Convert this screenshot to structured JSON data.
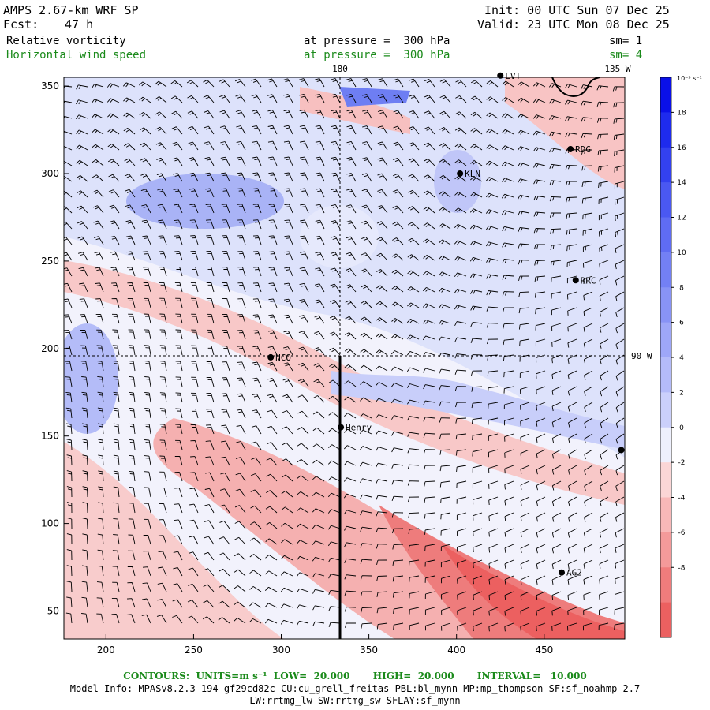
{
  "header": {
    "model": "AMPS 2.67-km WRF SP",
    "fcst_label": "Fcst:",
    "fcst_value": "47 h",
    "init": "Init: 00 UTC Sun 07 Dec 25",
    "valid": "Valid: 23 UTC Mon 08 Dec 25",
    "field1": "Relative vorticity",
    "field1_level": "at pressure =  300 hPa",
    "field1_sm": "sm= 1",
    "field2": "Horizontal wind speed",
    "field2_level": "at pressure =  300 hPa",
    "field2_sm": "sm= 4"
  },
  "map": {
    "lon_180": "180",
    "lon_135w": "135 W",
    "lon_90w": "90 W",
    "stations": [
      {
        "name": "LVT",
        "gx": 425,
        "gy": 356
      },
      {
        "name": "RDG",
        "gx": 465,
        "gy": 314
      },
      {
        "name": "KLN",
        "gx": 402,
        "gy": 300
      },
      {
        "name": "RRC",
        "gx": 468,
        "gy": 239
      },
      {
        "name": "NCO",
        "gx": 294,
        "gy": 195
      },
      {
        "name": "Henry",
        "gx": 334,
        "gy": 155
      },
      {
        "name": "AG2",
        "gx": 460,
        "gy": 72
      },
      {
        "name": "",
        "gx": 494,
        "gy": 142
      }
    ],
    "x_ticks": [
      "200",
      "250",
      "300",
      "350",
      "400",
      "450"
    ],
    "y_ticks": [
      "50",
      "100",
      "150",
      "200",
      "250",
      "300",
      "350"
    ],
    "x_tick_values": [
      200,
      250,
      300,
      350,
      400,
      450
    ],
    "y_tick_values": [
      50,
      100,
      150,
      200,
      250,
      300,
      350
    ],
    "x_range": [
      176,
      496
    ],
    "y_range": [
      34,
      355
    ]
  },
  "colorbar": {
    "unit": "10⁻⁵ s⁻¹",
    "labels": [
      "18",
      "16",
      "14",
      "12",
      "10",
      "8",
      "6",
      "4",
      "2",
      "0",
      "-2",
      "-4",
      "-6",
      "-8"
    ],
    "levels": [
      20,
      18,
      16,
      14,
      12,
      10,
      8,
      6,
      4,
      2,
      0,
      -2,
      -4,
      -6,
      -8,
      -10
    ],
    "colors": [
      "#0a10e8",
      "#1e2bee",
      "#3341f0",
      "#4a58f2",
      "#5f6cf3",
      "#7380f5",
      "#8893f6",
      "#9ea7f8",
      "#b4bbf9",
      "#cbd0fb",
      "#eef0fd",
      "#fbd6d6",
      "#f8b8b8",
      "#f49a9a",
      "#f07c7c",
      "#ec6060"
    ]
  },
  "footer": {
    "contours": "CONTOURS:  UNITS=m s⁻¹  LOW=  20.000       HIGH=  20.000       INTERVAL=   10.000",
    "model_info": "Model Info: MPASv8.2.3-194-gf29cd82c CU:cu_grell_freitas PBL:bl_mynn MP:mp_thompson SF:sf_noahmp 2.7",
    "model_info2": "LW:rrtmg_lw SW:rrtmg_sw SFLAY:sf_mynn"
  }
}
